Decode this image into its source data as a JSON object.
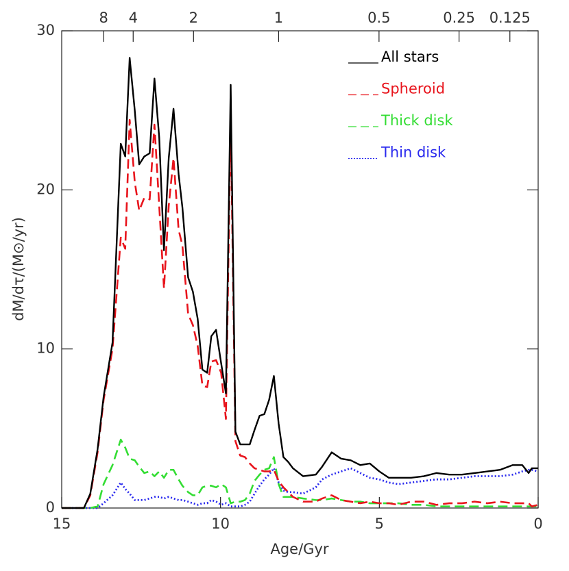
{
  "chart_data": {
    "type": "line",
    "xlabel": "Age/Gyr",
    "ylabel": "dM/dτ/(M⊙/yr)",
    "xlim": [
      15,
      0
    ],
    "ylim": [
      0,
      30
    ],
    "xticks": [
      15,
      10,
      5,
      0
    ],
    "yticks": [
      0,
      10,
      20,
      30
    ],
    "x2ticks": [
      {
        "value": 13.68,
        "label": "8"
      },
      {
        "value": 12.75,
        "label": "4"
      },
      {
        "value": 10.85,
        "label": "2"
      },
      {
        "value": 8.17,
        "label": "1"
      },
      {
        "value": 5.01,
        "label": "0.5"
      },
      {
        "value": 2.49,
        "label": "0.25"
      },
      {
        "value": 0.89,
        "label": "0.125"
      }
    ],
    "legend": "upper right",
    "x": [
      15,
      14.3,
      14.1,
      13.87,
      13.68,
      13.4,
      13.14,
      13.0,
      12.86,
      12.7,
      12.56,
      12.4,
      12.23,
      12.08,
      11.93,
      11.78,
      11.63,
      11.48,
      11.32,
      11.2,
      11.02,
      10.87,
      10.72,
      10.57,
      10.42,
      10.29,
      10.14,
      9.98,
      9.83,
      9.68,
      9.53,
      9.38,
      9.23,
      9.08,
      8.93,
      8.77,
      8.62,
      8.47,
      8.32,
      8.17,
      8.02,
      7.87,
      7.72,
      7.4,
      7.0,
      6.8,
      6.5,
      6.2,
      5.9,
      5.6,
      5.3,
      5.0,
      4.7,
      4.4,
      4.0,
      3.6,
      3.2,
      2.8,
      2.4,
      2.0,
      1.6,
      1.2,
      0.8,
      0.5,
      0.3,
      0.2,
      0
    ],
    "series": [
      {
        "name": "All stars",
        "color": "#000000",
        "style": "solid",
        "values": [
          0,
          0,
          0.9,
          3.7,
          7,
          10.4,
          22.9,
          22.1,
          28.3,
          25,
          21.6,
          22.1,
          22.3,
          27,
          23.3,
          16.2,
          22,
          25.1,
          21,
          18.9,
          14.5,
          13.6,
          11.9,
          8.7,
          8.5,
          10.8,
          11.2,
          9.1,
          7.2,
          26.6,
          4.8,
          4.0,
          4.0,
          4.0,
          4.9,
          5.8,
          5.9,
          6.8,
          8.3,
          5.3,
          3.2,
          2.9,
          2.5,
          2.0,
          2.1,
          2.6,
          3.5,
          3.1,
          3.0,
          2.7,
          2.8,
          2.3,
          1.9,
          1.9,
          1.9,
          2.0,
          2.2,
          2.1,
          2.1,
          2.2,
          2.3,
          2.4,
          2.7,
          2.7,
          2.2,
          2.5,
          2.5
        ]
      },
      {
        "name": "Spheroid",
        "color": "#e8141c",
        "style": "dashed",
        "values": [
          0,
          0,
          0.8,
          3.5,
          6.8,
          10,
          17,
          16.3,
          24.4,
          20.5,
          18.7,
          19.5,
          19.4,
          24.1,
          19,
          13.8,
          19,
          22,
          17.5,
          16.5,
          12.2,
          11.5,
          10.2,
          7.7,
          7.6,
          9.2,
          9.3,
          8.5,
          5.6,
          24.6,
          4.2,
          3.3,
          3.2,
          2.8,
          2.5,
          2.4,
          2.3,
          2.3,
          2.4,
          1.7,
          1.3,
          1.0,
          0.7,
          0.4,
          0.4,
          0.6,
          0.8,
          0.5,
          0.4,
          0.3,
          0.4,
          0.3,
          0.3,
          0.2,
          0.4,
          0.4,
          0.2,
          0.3,
          0.3,
          0.4,
          0.3,
          0.4,
          0.3,
          0.3,
          0.3,
          0.1,
          0.2
        ]
      },
      {
        "name": "Thick disk",
        "color": "#33dd33",
        "style": "dashed",
        "values": [
          0,
          0,
          0,
          0.1,
          1.5,
          2.7,
          4.3,
          3.8,
          3.1,
          3.0,
          2.6,
          2.2,
          2.3,
          2.0,
          2.3,
          1.9,
          2.4,
          2.4,
          1.8,
          1.4,
          1.0,
          0.8,
          0.8,
          1.3,
          1.4,
          1.4,
          1.3,
          1.5,
          1.3,
          0.3,
          0.4,
          0.4,
          0.5,
          0.9,
          1.7,
          2.1,
          2.4,
          2.5,
          3.2,
          1.5,
          0.7,
          0.7,
          0.7,
          0.6,
          0.5,
          0.5,
          0.6,
          0.5,
          0.4,
          0.4,
          0.3,
          0.3,
          0.3,
          0.3,
          0.2,
          0.2,
          0.1,
          0.1,
          0.1,
          0.1,
          0.1,
          0.1,
          0.1,
          0.1,
          0.1,
          0.1,
          0.1
        ]
      },
      {
        "name": "Thin disk",
        "color": "#2a2aee",
        "style": "dotted",
        "values": [
          0,
          0,
          0,
          0,
          0.3,
          0.8,
          1.6,
          1.2,
          0.9,
          0.5,
          0.5,
          0.5,
          0.6,
          0.7,
          0.7,
          0.6,
          0.7,
          0.6,
          0.5,
          0.5,
          0.4,
          0.3,
          0.2,
          0.3,
          0.3,
          0.5,
          0.4,
          0.2,
          0.3,
          0.1,
          0.1,
          0.1,
          0.2,
          0.4,
          0.9,
          1.4,
          1.8,
          2.1,
          2.5,
          1.6,
          1.1,
          1.0,
          1.0,
          0.9,
          1.3,
          1.8,
          2.1,
          2.3,
          2.5,
          2.2,
          1.9,
          1.8,
          1.6,
          1.5,
          1.6,
          1.7,
          1.8,
          1.8,
          1.9,
          2.0,
          2.0,
          2.0,
          2.1,
          2.3,
          2.4,
          2.4,
          2.3
        ]
      }
    ]
  }
}
